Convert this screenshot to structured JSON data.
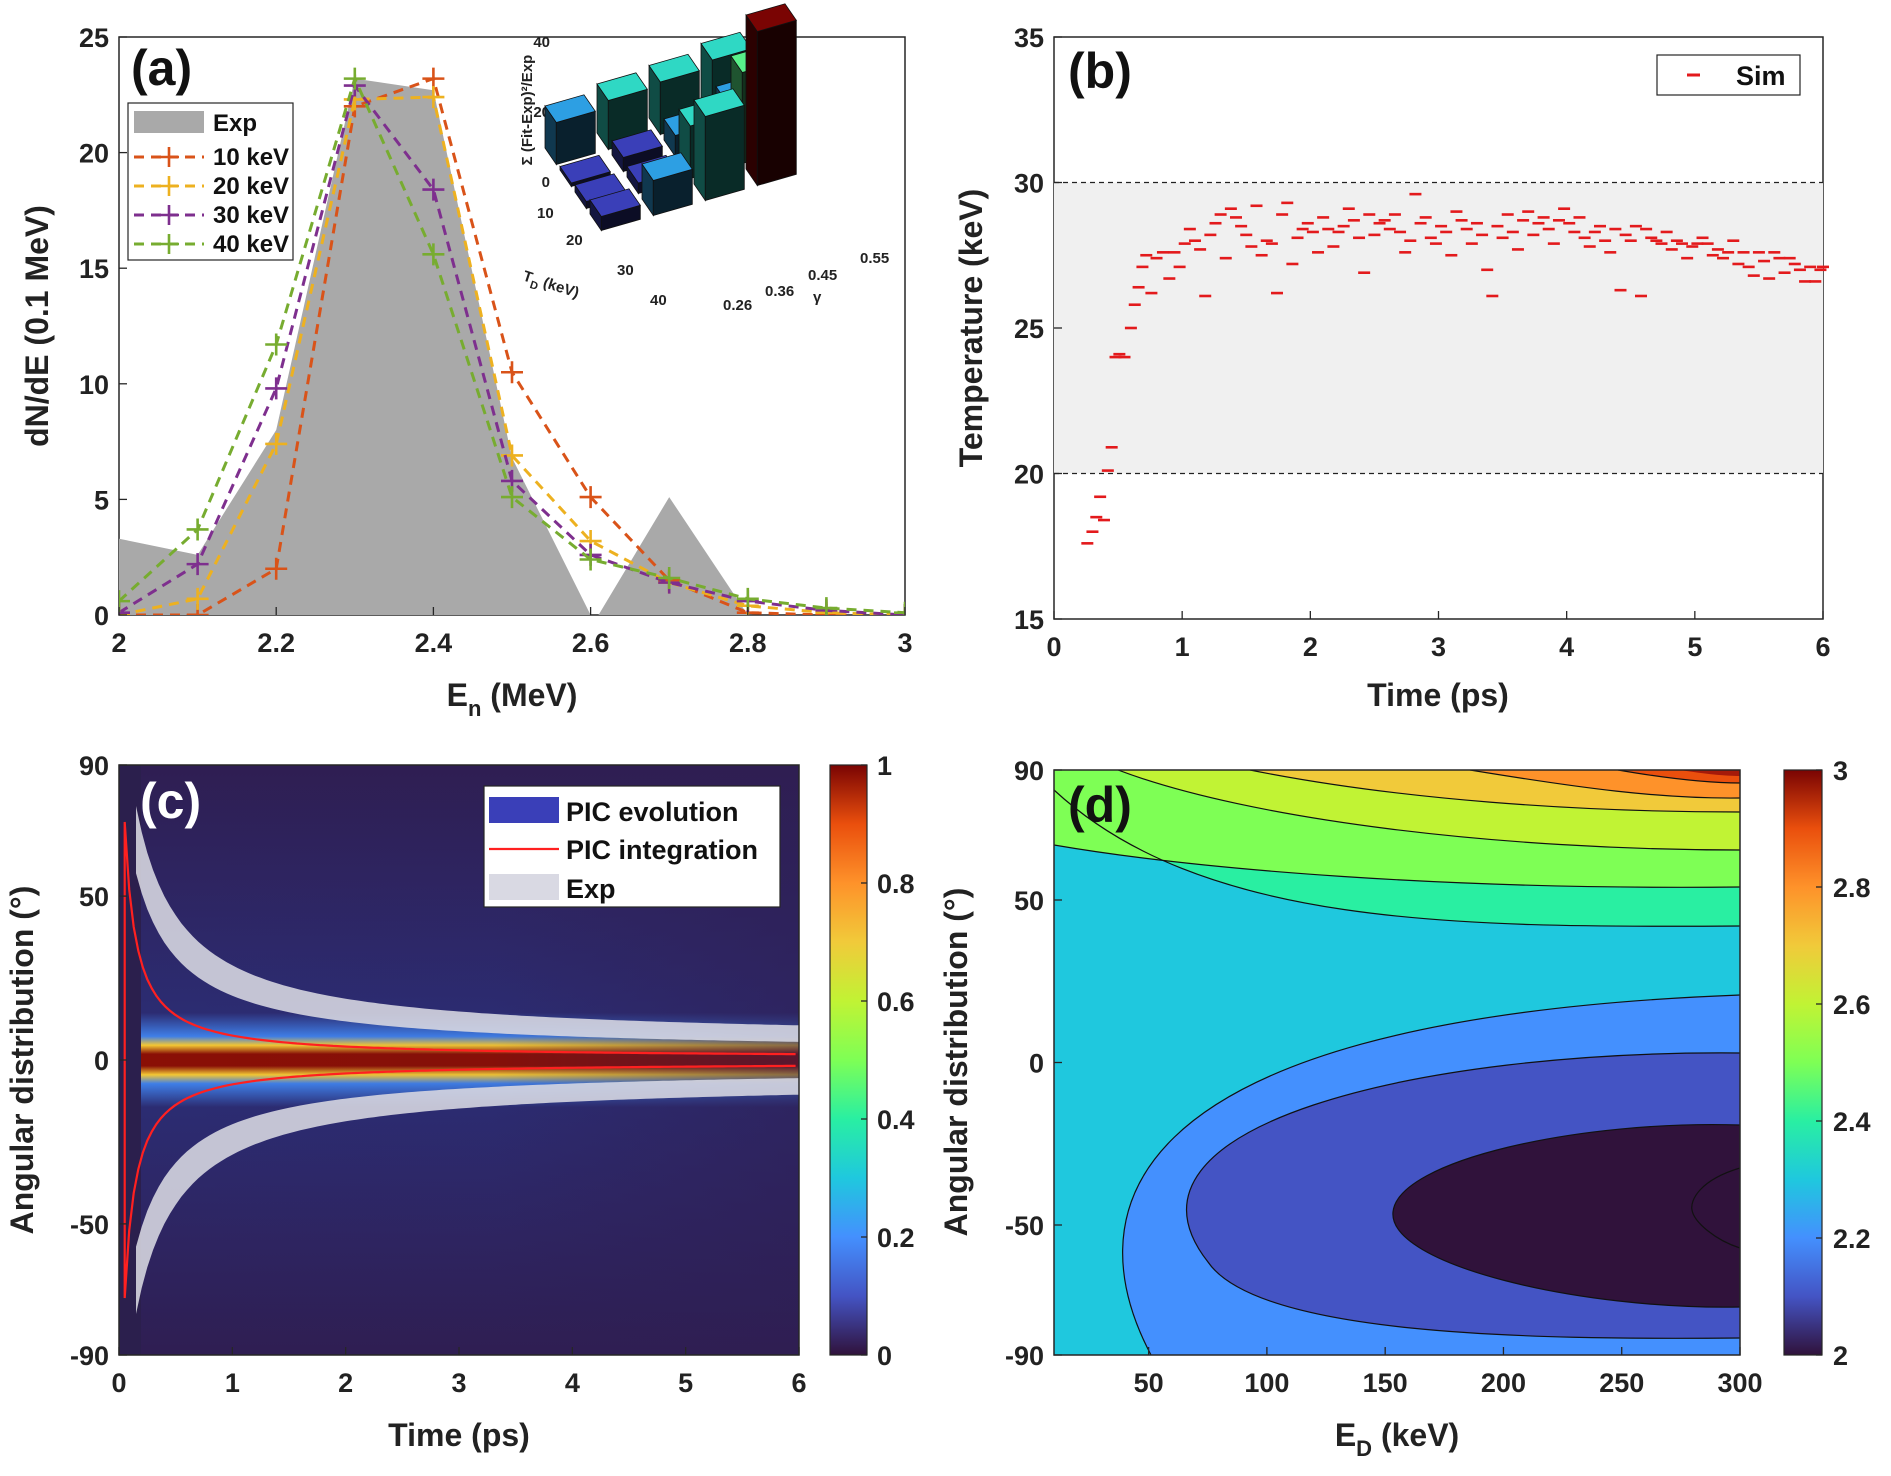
{
  "chart_data": [
    {
      "panel": "(a)",
      "type": "line",
      "xlabel": "E",
      "xlabel_sub": "n",
      "xlabel_unit": " (MeV)",
      "ylabel": "dN/dE (0.1 MeV)",
      "xlim": [
        2,
        3
      ],
      "ylim": [
        0,
        25
      ],
      "xticks": [
        "2",
        "2.2",
        "2.4",
        "2.6",
        "2.8",
        "3"
      ],
      "yticks": [
        "0",
        "5",
        "10",
        "15",
        "20",
        "25"
      ],
      "area": {
        "name": "Exp",
        "color": "#a9a9a9",
        "points": [
          [
            2.0,
            3.3
          ],
          [
            2.1,
            2.6
          ],
          [
            2.2,
            8.0
          ],
          [
            2.3,
            23.2
          ],
          [
            2.4,
            22.7
          ],
          [
            2.5,
            6.8
          ],
          [
            2.6,
            0.0
          ],
          [
            2.61,
            0.0
          ],
          [
            2.7,
            5.1
          ],
          [
            2.8,
            0.0
          ],
          [
            3.0,
            0.0
          ]
        ]
      },
      "x": [
        2.0,
        2.1,
        2.2,
        2.3,
        2.4,
        2.5,
        2.6,
        2.7,
        2.8,
        2.9,
        3.0
      ],
      "series": [
        {
          "name": "10 keV",
          "color": "#d95319",
          "values": [
            0.0,
            0.0,
            2.0,
            22.0,
            23.2,
            10.5,
            5.1,
            1.5,
            0.1,
            0.0,
            0.0
          ]
        },
        {
          "name": "20 keV",
          "color": "#edb120",
          "values": [
            0.0,
            0.7,
            7.4,
            22.3,
            22.4,
            6.9,
            3.2,
            1.4,
            0.4,
            0.1,
            0.0
          ]
        },
        {
          "name": "30 keV",
          "color": "#7e2f8e",
          "values": [
            0.1,
            2.2,
            9.8,
            22.9,
            18.4,
            5.8,
            2.6,
            1.4,
            0.6,
            0.2,
            0.0
          ]
        },
        {
          "name": "40 keV",
          "color": "#77ac30",
          "values": [
            0.6,
            3.7,
            11.7,
            23.2,
            15.6,
            5.1,
            2.4,
            1.6,
            0.7,
            0.3,
            0.1
          ]
        }
      ],
      "inset": {
        "type": "bar3d",
        "zlabel": "Σ (Fit-Exp)²/Exp",
        "zticks": [
          "0",
          "20",
          "40"
        ],
        "xlabel": "T",
        "xlabel_sub": "D",
        "xlabel_unit": " (keV)",
        "xticks": [
          "10",
          "20",
          "30",
          "40"
        ],
        "ylabel": "γ",
        "yticks": [
          "0.26",
          "0.36",
          "0.45",
          "0.55"
        ],
        "rows": [
          "10",
          "20",
          "30",
          "40"
        ],
        "cols": [
          "0.26",
          "0.36",
          "0.45",
          "0.55"
        ],
        "values": [
          [
            12,
            14,
            15,
            17
          ],
          [
            1,
            4,
            6,
            11
          ],
          [
            2,
            3,
            15,
            26
          ],
          [
            4,
            10,
            24,
            44
          ]
        ]
      }
    },
    {
      "panel": "(b)",
      "type": "scatter",
      "xlabel": "Time (ps)",
      "ylabel": "Temperature (keV)",
      "xlim": [
        0,
        6
      ],
      "ylim": [
        15,
        35
      ],
      "xticks": [
        "0",
        "1",
        "2",
        "3",
        "4",
        "5",
        "6"
      ],
      "yticks": [
        "15",
        "20",
        "25",
        "30",
        "35"
      ],
      "band": [
        20,
        30
      ],
      "legend": "Sim",
      "marker_color": "#e31a1c",
      "points": [
        [
          0.26,
          17.6
        ],
        [
          0.3,
          18.0
        ],
        [
          0.33,
          18.5
        ],
        [
          0.36,
          19.2
        ],
        [
          0.39,
          18.4
        ],
        [
          0.42,
          20.1
        ],
        [
          0.45,
          20.9
        ],
        [
          0.48,
          24.0
        ],
        [
          0.51,
          24.1
        ],
        [
          0.55,
          24.0
        ],
        [
          0.6,
          25.0
        ],
        [
          0.63,
          25.8
        ],
        [
          0.66,
          26.4
        ],
        [
          0.69,
          27.1
        ],
        [
          0.72,
          27.5
        ],
        [
          0.76,
          26.2
        ],
        [
          0.8,
          27.4
        ],
        [
          0.85,
          27.6
        ],
        [
          0.9,
          26.7
        ],
        [
          0.94,
          27.6
        ],
        [
          0.98,
          27.1
        ],
        [
          1.02,
          27.9
        ],
        [
          1.06,
          28.4
        ],
        [
          1.1,
          28.0
        ],
        [
          1.14,
          27.7
        ],
        [
          1.18,
          26.1
        ],
        [
          1.22,
          28.2
        ],
        [
          1.26,
          28.6
        ],
        [
          1.3,
          28.9
        ],
        [
          1.34,
          27.4
        ],
        [
          1.38,
          29.1
        ],
        [
          1.42,
          28.8
        ],
        [
          1.46,
          28.5
        ],
        [
          1.5,
          28.2
        ],
        [
          1.54,
          27.8
        ],
        [
          1.58,
          29.2
        ],
        [
          1.62,
          27.5
        ],
        [
          1.66,
          28.0
        ],
        [
          1.7,
          27.9
        ],
        [
          1.74,
          26.2
        ],
        [
          1.78,
          28.9
        ],
        [
          1.82,
          29.3
        ],
        [
          1.86,
          27.2
        ],
        [
          1.9,
          28.1
        ],
        [
          1.94,
          28.4
        ],
        [
          1.98,
          28.6
        ],
        [
          2.02,
          28.3
        ],
        [
          2.06,
          27.6
        ],
        [
          2.1,
          28.8
        ],
        [
          2.14,
          28.4
        ],
        [
          2.18,
          27.8
        ],
        [
          2.22,
          28.3
        ],
        [
          2.26,
          28.5
        ],
        [
          2.3,
          29.1
        ],
        [
          2.34,
          28.7
        ],
        [
          2.38,
          28.1
        ],
        [
          2.42,
          26.9
        ],
        [
          2.46,
          28.9
        ],
        [
          2.5,
          28.2
        ],
        [
          2.54,
          28.6
        ],
        [
          2.58,
          28.7
        ],
        [
          2.62,
          28.4
        ],
        [
          2.66,
          28.9
        ],
        [
          2.7,
          28.3
        ],
        [
          2.74,
          27.6
        ],
        [
          2.78,
          28.0
        ],
        [
          2.82,
          29.6
        ],
        [
          2.86,
          28.6
        ],
        [
          2.9,
          28.8
        ],
        [
          2.94,
          28.1
        ],
        [
          2.98,
          27.9
        ],
        [
          3.02,
          28.5
        ],
        [
          3.06,
          28.3
        ],
        [
          3.1,
          27.5
        ],
        [
          3.14,
          29.0
        ],
        [
          3.18,
          28.7
        ],
        [
          3.22,
          28.4
        ],
        [
          3.26,
          27.9
        ],
        [
          3.3,
          28.6
        ],
        [
          3.34,
          28.2
        ],
        [
          3.38,
          27.0
        ],
        [
          3.42,
          26.1
        ],
        [
          3.46,
          28.5
        ],
        [
          3.5,
          28.1
        ],
        [
          3.54,
          28.9
        ],
        [
          3.58,
          28.3
        ],
        [
          3.62,
          27.7
        ],
        [
          3.66,
          28.7
        ],
        [
          3.7,
          29.0
        ],
        [
          3.74,
          28.2
        ],
        [
          3.78,
          28.6
        ],
        [
          3.82,
          28.8
        ],
        [
          3.86,
          28.4
        ],
        [
          3.9,
          27.9
        ],
        [
          3.94,
          28.7
        ],
        [
          3.98,
          29.1
        ],
        [
          4.02,
          28.6
        ],
        [
          4.06,
          28.3
        ],
        [
          4.1,
          28.8
        ],
        [
          4.14,
          28.1
        ],
        [
          4.18,
          27.8
        ],
        [
          4.22,
          28.3
        ],
        [
          4.26,
          28.5
        ],
        [
          4.3,
          28.0
        ],
        [
          4.34,
          27.6
        ],
        [
          4.38,
          28.4
        ],
        [
          4.42,
          26.3
        ],
        [
          4.46,
          28.2
        ],
        [
          4.5,
          28.0
        ],
        [
          4.54,
          28.5
        ],
        [
          4.58,
          26.1
        ],
        [
          4.62,
          28.4
        ],
        [
          4.66,
          28.1
        ],
        [
          4.7,
          28.0
        ],
        [
          4.74,
          27.9
        ],
        [
          4.78,
          28.3
        ],
        [
          4.82,
          27.7
        ],
        [
          4.86,
          28.0
        ],
        [
          4.9,
          27.9
        ],
        [
          4.94,
          27.4
        ],
        [
          4.98,
          27.8
        ],
        [
          5.02,
          27.9
        ],
        [
          5.06,
          28.1
        ],
        [
          5.1,
          27.9
        ],
        [
          5.14,
          27.5
        ],
        [
          5.18,
          27.7
        ],
        [
          5.22,
          27.4
        ],
        [
          5.26,
          27.6
        ],
        [
          5.3,
          28.0
        ],
        [
          5.34,
          27.2
        ],
        [
          5.38,
          27.6
        ],
        [
          5.42,
          27.1
        ],
        [
          5.46,
          26.8
        ],
        [
          5.5,
          27.6
        ],
        [
          5.54,
          27.3
        ],
        [
          5.58,
          26.7
        ],
        [
          5.62,
          27.6
        ],
        [
          5.66,
          27.4
        ],
        [
          5.7,
          26.9
        ],
        [
          5.74,
          27.4
        ],
        [
          5.78,
          27.2
        ],
        [
          5.82,
          27.0
        ],
        [
          5.86,
          26.6
        ],
        [
          5.9,
          27.1
        ],
        [
          5.94,
          26.6
        ],
        [
          5.98,
          27.0
        ],
        [
          6.0,
          27.1
        ]
      ]
    },
    {
      "panel": "(c)",
      "type": "heatmap",
      "xlabel": "Time (ps)",
      "ylabel": "Angular distribution (°)",
      "xlim": [
        0,
        6
      ],
      "ylim": [
        -90,
        90
      ],
      "xticks": [
        "0",
        "1",
        "2",
        "3",
        "4",
        "5",
        "6"
      ],
      "yticks": [
        "90",
        "50",
        "0",
        "-50",
        "-90"
      ],
      "colorbar": {
        "min": 0,
        "max": 1,
        "ticks": [
          "1",
          "0.8",
          "0.6",
          "0.4",
          "0.2",
          "0"
        ]
      },
      "legend": [
        "PIC evolution",
        "PIC integration",
        "Exp"
      ]
    },
    {
      "panel": "(d)",
      "type": "contour",
      "xlabel": "E",
      "xlabel_sub": "D",
      "xlabel_unit": " (keV)",
      "ylabel": "Angular distribution (°)",
      "xlim": [
        10,
        300
      ],
      "ylim": [
        -90,
        90
      ],
      "xticks": [
        "50",
        "100",
        "150",
        "200",
        "250",
        "300"
      ],
      "yticks": [
        "90",
        "50",
        "0",
        "-50",
        "-90"
      ],
      "colorbar": {
        "min": 2,
        "max": 3,
        "ticks": [
          "3",
          "2.8",
          "2.6",
          "2.4",
          "2.2",
          "2"
        ]
      },
      "levels": [
        2.0,
        2.1,
        2.2,
        2.3,
        2.4,
        2.5,
        2.6,
        2.7,
        2.8,
        2.9,
        3.0
      ]
    }
  ]
}
